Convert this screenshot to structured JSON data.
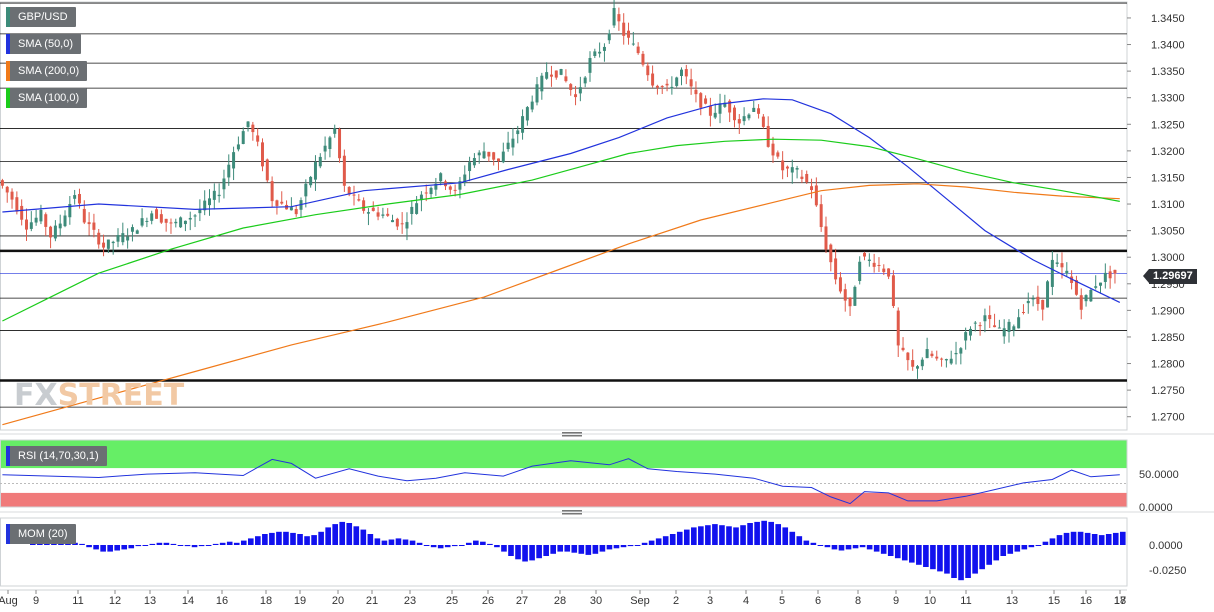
{
  "symbol": "GBP/USD",
  "last_price": "1.29697",
  "legend": [
    {
      "label": "SMA (50,0)",
      "color": "#2233dd"
    },
    {
      "label": "SMA (200,0)",
      "color": "#f07a1a"
    },
    {
      "label": "SMA (100,0)",
      "color": "#1bcc1b"
    }
  ],
  "colors": {
    "up": "#3d8b7a",
    "down": "#e05a4a",
    "sma50": "#2233dd",
    "sma200": "#f07a1a",
    "sma100": "#1bcc1b",
    "rsi": "#2233dd",
    "mom": "#1111ee",
    "rsi_over": "#66ee66",
    "rsi_under": "#f07a7a"
  },
  "watermark": {
    "part1": "FX",
    "part2": "STREET"
  },
  "rsi": {
    "label": "RSI (14,70,30,1)",
    "ticks": [
      "50.0000",
      "0.0000"
    ]
  },
  "mom": {
    "label": "MOM (20)",
    "ticks": [
      "0.0000",
      "-0.0250"
    ]
  },
  "chart_data": {
    "type": "candlestick",
    "timeframe_note": "hourly candles",
    "y_ticks": [
      "1.3450",
      "1.3400",
      "1.3350",
      "1.3300",
      "1.3250",
      "1.3200",
      "1.3150",
      "1.3100",
      "1.3050",
      "1.3000",
      "1.2950",
      "1.2900",
      "1.2850",
      "1.2800",
      "1.2750",
      "1.2700"
    ],
    "ylim": [
      1.2675,
      1.348
    ],
    "x_labels": [
      "Aug",
      "9",
      "11",
      "12",
      "13",
      "14",
      "16",
      "18",
      "19",
      "20",
      "21",
      "23",
      "25",
      "26",
      "27",
      "28",
      "30",
      "Sep",
      "2",
      "3",
      "4",
      "5",
      "6",
      "8",
      "9",
      "10",
      "11",
      "13",
      "15",
      "16",
      "17",
      "18"
    ],
    "grid": "horizontal",
    "horizontal_levels": [
      1.3478,
      1.342,
      1.3365,
      1.3318,
      1.3242,
      1.318,
      1.314,
      1.304,
      1.3012,
      1.2923,
      1.2862,
      1.2768,
      1.2718
    ],
    "bold_levels": [
      1.3012,
      1.2768
    ],
    "path_points": [
      [
        0,
        1.3145
      ],
      [
        3,
        1.311
      ],
      [
        6,
        1.306
      ],
      [
        9,
        1.308
      ],
      [
        11,
        1.304
      ],
      [
        13,
        1.3065
      ],
      [
        16,
        1.312
      ],
      [
        18,
        1.307
      ],
      [
        22,
        1.302
      ],
      [
        28,
        1.305
      ],
      [
        32,
        1.3085
      ],
      [
        36,
        1.306
      ],
      [
        41,
        1.308
      ],
      [
        46,
        1.3125
      ],
      [
        49,
        1.32
      ],
      [
        52,
        1.3255
      ],
      [
        54,
        1.321
      ],
      [
        57,
        1.311
      ],
      [
        62,
        1.3085
      ],
      [
        66,
        1.3175
      ],
      [
        70,
        1.324
      ],
      [
        72,
        1.313
      ],
      [
        76,
        1.309
      ],
      [
        80,
        1.308
      ],
      [
        84,
        1.306
      ],
      [
        88,
        1.312
      ],
      [
        92,
        1.315
      ],
      [
        95,
        1.312
      ],
      [
        98,
        1.318
      ],
      [
        101,
        1.32
      ],
      [
        104,
        1.318
      ],
      [
        108,
        1.324
      ],
      [
        111,
        1.33
      ],
      [
        114,
        1.335
      ],
      [
        117,
        1.3345
      ],
      [
        120,
        1.33
      ],
      [
        123,
        1.337
      ],
      [
        126,
        1.34
      ],
      [
        128,
        1.346
      ],
      [
        130,
        1.342
      ],
      [
        133,
        1.3385
      ],
      [
        136,
        1.333
      ],
      [
        139,
        1.3315
      ],
      [
        142,
        1.335
      ],
      [
        145,
        1.33
      ],
      [
        148,
        1.327
      ],
      [
        151,
        1.329
      ],
      [
        154,
        1.3255
      ],
      [
        157,
        1.3285
      ],
      [
        160,
        1.3215
      ],
      [
        163,
        1.3165
      ],
      [
        166,
        1.316
      ],
      [
        169,
        1.313
      ],
      [
        172,
        1.302
      ],
      [
        174,
        1.296
      ],
      [
        177,
        1.29
      ],
      [
        179,
        1.3
      ],
      [
        182,
        1.299
      ],
      [
        185,
        1.297
      ],
      [
        187,
        1.283
      ],
      [
        190,
        1.279
      ],
      [
        193,
        1.282
      ],
      [
        196,
        1.28
      ],
      [
        199,
        1.282
      ],
      [
        202,
        1.287
      ],
      [
        205,
        1.2885
      ],
      [
        208,
        1.286
      ],
      [
        211,
        1.2875
      ],
      [
        214,
        1.292
      ],
      [
        217,
        1.291
      ],
      [
        219,
        1.299
      ],
      [
        222,
        1.297
      ],
      [
        225,
        1.291
      ],
      [
        228,
        1.295
      ],
      [
        230,
        1.2965
      ],
      [
        232,
        1.297
      ]
    ],
    "series": [
      {
        "name": "SMA (50,0)",
        "points": [
          [
            0,
            1.3085
          ],
          [
            20,
            1.31
          ],
          [
            40,
            1.309
          ],
          [
            60,
            1.3095
          ],
          [
            75,
            1.3125
          ],
          [
            95,
            1.314
          ],
          [
            105,
            1.3165
          ],
          [
            118,
            1.3195
          ],
          [
            128,
            1.3225
          ],
          [
            138,
            1.3262
          ],
          [
            148,
            1.3287
          ],
          [
            158,
            1.3298
          ],
          [
            164,
            1.3296
          ],
          [
            172,
            1.327
          ],
          [
            180,
            1.3225
          ],
          [
            188,
            1.317
          ],
          [
            196,
            1.311
          ],
          [
            204,
            1.305
          ],
          [
            214,
            1.2995
          ],
          [
            224,
            1.295
          ],
          [
            232,
            1.2915
          ]
        ]
      },
      {
        "name": "SMA (200,0)",
        "points": [
          [
            0,
            1.2685
          ],
          [
            20,
            1.2735
          ],
          [
            40,
            1.2785
          ],
          [
            60,
            1.2835
          ],
          [
            80,
            1.2878
          ],
          [
            100,
            1.2925
          ],
          [
            115,
            1.2975
          ],
          [
            130,
            1.3025
          ],
          [
            145,
            1.307
          ],
          [
            160,
            1.3103
          ],
          [
            170,
            1.3125
          ],
          [
            180,
            1.3135
          ],
          [
            190,
            1.3138
          ],
          [
            200,
            1.3132
          ],
          [
            210,
            1.3122
          ],
          [
            220,
            1.3115
          ],
          [
            232,
            1.311
          ]
        ]
      },
      {
        "name": "SMA (100,0)",
        "points": [
          [
            0,
            1.288
          ],
          [
            10,
            1.2925
          ],
          [
            20,
            1.297
          ],
          [
            35,
            1.3015
          ],
          [
            50,
            1.3055
          ],
          [
            65,
            1.308
          ],
          [
            80,
            1.31
          ],
          [
            95,
            1.3118
          ],
          [
            110,
            1.3145
          ],
          [
            120,
            1.317
          ],
          [
            130,
            1.3195
          ],
          [
            140,
            1.321
          ],
          [
            150,
            1.3218
          ],
          [
            160,
            1.3222
          ],
          [
            170,
            1.322
          ],
          [
            180,
            1.3208
          ],
          [
            190,
            1.3185
          ],
          [
            200,
            1.316
          ],
          [
            210,
            1.314
          ],
          [
            220,
            1.3125
          ],
          [
            232,
            1.3105
          ]
        ]
      }
    ],
    "rsi_points": [
      [
        0,
        57
      ],
      [
        10,
        55
      ],
      [
        20,
        53
      ],
      [
        30,
        58
      ],
      [
        40,
        60
      ],
      [
        50,
        56
      ],
      [
        56,
        80
      ],
      [
        60,
        74
      ],
      [
        65,
        52
      ],
      [
        72,
        66
      ],
      [
        78,
        55
      ],
      [
        84,
        48
      ],
      [
        90,
        52
      ],
      [
        96,
        60
      ],
      [
        104,
        55
      ],
      [
        110,
        70
      ],
      [
        118,
        78
      ],
      [
        126,
        72
      ],
      [
        130,
        81
      ],
      [
        134,
        66
      ],
      [
        140,
        62
      ],
      [
        148,
        58
      ],
      [
        156,
        52
      ],
      [
        162,
        40
      ],
      [
        168,
        38
      ],
      [
        172,
        24
      ],
      [
        176,
        14
      ],
      [
        179,
        32
      ],
      [
        184,
        30
      ],
      [
        188,
        18
      ],
      [
        194,
        18
      ],
      [
        200,
        25
      ],
      [
        206,
        35
      ],
      [
        212,
        45
      ],
      [
        218,
        50
      ],
      [
        222,
        64
      ],
      [
        226,
        54
      ],
      [
        232,
        57
      ]
    ],
    "mom_values": [
      0.002,
      0.003,
      0.004,
      0.006,
      0.005,
      0.004,
      0.002,
      0.001,
      -0.002,
      -0.004,
      -0.006,
      -0.006,
      -0.005,
      -0.004,
      -0.003,
      -0.001,
      0.0,
      0.001,
      0.002,
      0.002,
      0.001,
      0.0,
      -0.001,
      -0.002,
      -0.001,
      0.0,
      0.001,
      0.002,
      0.003,
      0.002,
      0.004,
      0.006,
      0.008,
      0.01,
      0.011,
      0.012,
      0.012,
      0.011,
      0.01,
      0.008,
      0.009,
      0.012,
      0.016,
      0.019,
      0.021,
      0.02,
      0.017,
      0.014,
      0.01,
      0.006,
      0.004,
      0.005,
      0.006,
      0.005,
      0.004,
      0.002,
      0.0,
      -0.002,
      -0.003,
      -0.002,
      -0.001,
      0.0,
      0.002,
      0.004,
      0.003,
      0.001,
      -0.002,
      -0.006,
      -0.01,
      -0.013,
      -0.015,
      -0.014,
      -0.012,
      -0.01,
      -0.008,
      -0.006,
      -0.006,
      -0.007,
      -0.008,
      -0.009,
      -0.008,
      -0.006,
      -0.004,
      -0.003,
      -0.002,
      -0.001,
      0.0,
      0.002,
      0.004,
      0.006,
      0.008,
      0.01,
      0.012,
      0.014,
      0.016,
      0.017,
      0.018,
      0.019,
      0.018,
      0.017,
      0.016,
      0.018,
      0.02,
      0.021,
      0.022,
      0.021,
      0.019,
      0.016,
      0.012,
      0.008,
      0.004,
      0.002,
      0.0,
      -0.002,
      -0.004,
      -0.005,
      -0.004,
      -0.003,
      -0.002,
      -0.004,
      -0.006,
      -0.008,
      -0.01,
      -0.012,
      -0.014,
      -0.016,
      -0.018,
      -0.02,
      -0.022,
      -0.024,
      -0.026,
      -0.03,
      -0.032,
      -0.03,
      -0.026,
      -0.022,
      -0.018,
      -0.014,
      -0.01,
      -0.008,
      -0.006,
      -0.004,
      -0.002,
      0.0,
      0.003,
      0.006,
      0.009,
      0.011,
      0.012,
      0.012,
      0.011,
      0.01,
      0.009,
      0.01,
      0.011,
      0.012
    ]
  }
}
